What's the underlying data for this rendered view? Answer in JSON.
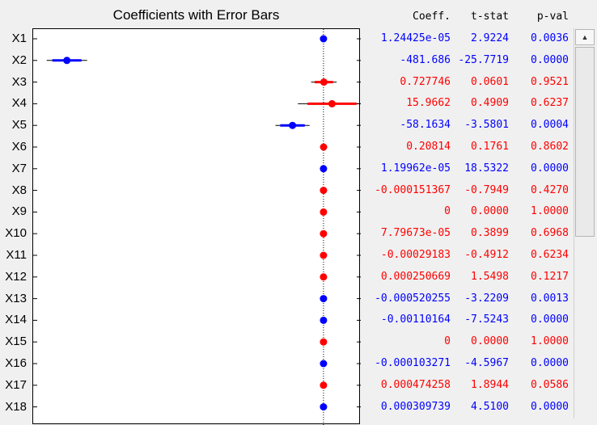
{
  "title": "Coefficients with Error Bars",
  "table": {
    "headers": [
      "Coeff.",
      "t-stat",
      "p-val"
    ]
  },
  "colors": {
    "significant": "#0000ff",
    "not_significant": "#ff0000",
    "axis": "#000000"
  },
  "icons": {
    "scroll_up": "triangle-up-icon"
  },
  "chart_data": {
    "type": "scatter",
    "title": "Coefficients with Error Bars",
    "grid": false,
    "reference_line": 0,
    "rows": [
      {
        "label": "X1",
        "coeff": "1.24425e-05",
        "tstat": "2.9224",
        "pval": "0.0036",
        "value": 0.0,
        "err": 0.0,
        "significant": true
      },
      {
        "label": "X2",
        "coeff": "-481.686",
        "tstat": "-25.7719",
        "pval": "0.0000",
        "value": -481.686,
        "err": 38,
        "significant": true
      },
      {
        "label": "X3",
        "coeff": "0.727746",
        "tstat": "0.0601",
        "pval": "0.9521",
        "value": 0.727746,
        "err": 24,
        "significant": false
      },
      {
        "label": "X4",
        "coeff": "15.9662",
        "tstat": "0.4909",
        "pval": "0.6237",
        "value": 15.9662,
        "err": 64,
        "significant": false
      },
      {
        "label": "X5",
        "coeff": "-58.1634",
        "tstat": "-3.5801",
        "pval": "0.0004",
        "value": -58.1634,
        "err": 32,
        "significant": true
      },
      {
        "label": "X6",
        "coeff": "0.20814",
        "tstat": "0.1761",
        "pval": "0.8602",
        "value": 0.20814,
        "err": 0,
        "significant": false
      },
      {
        "label": "X7",
        "coeff": "1.19962e-05",
        "tstat": "18.5322",
        "pval": "0.0000",
        "value": 0.0,
        "err": 0,
        "significant": true
      },
      {
        "label": "X8",
        "coeff": "-0.000151367",
        "tstat": "-0.7949",
        "pval": "0.4270",
        "value": -0.000151367,
        "err": 0,
        "significant": false
      },
      {
        "label": "X9",
        "coeff": "0",
        "tstat": "0.0000",
        "pval": "1.0000",
        "value": 0,
        "err": 0,
        "significant": false
      },
      {
        "label": "X10",
        "coeff": "7.79673e-05",
        "tstat": "0.3899",
        "pval": "0.6968",
        "value": 7.79673e-05,
        "err": 0,
        "significant": false
      },
      {
        "label": "X11",
        "coeff": "-0.00029183",
        "tstat": "-0.4912",
        "pval": "0.6234",
        "value": -0.00029183,
        "err": 0,
        "significant": false
      },
      {
        "label": "X12",
        "coeff": "0.000250669",
        "tstat": "1.5498",
        "pval": "0.1217",
        "value": 0.000250669,
        "err": 0,
        "significant": false
      },
      {
        "label": "X13",
        "coeff": "-0.000520255",
        "tstat": "-3.2209",
        "pval": "0.0013",
        "value": -0.000520255,
        "err": 0,
        "significant": true
      },
      {
        "label": "X14",
        "coeff": "-0.00110164",
        "tstat": "-7.5243",
        "pval": "0.0000",
        "value": -0.00110164,
        "err": 0,
        "significant": true
      },
      {
        "label": "X15",
        "coeff": "0",
        "tstat": "0.0000",
        "pval": "1.0000",
        "value": 0,
        "err": 0,
        "significant": false
      },
      {
        "label": "X16",
        "coeff": "-0.000103271",
        "tstat": "-4.5967",
        "pval": "0.0000",
        "value": -0.000103271,
        "err": 0,
        "significant": true
      },
      {
        "label": "X17",
        "coeff": "0.000474258",
        "tstat": "1.8944",
        "pval": "0.0586",
        "value": 0.000474258,
        "err": 0,
        "significant": false
      },
      {
        "label": "X18",
        "coeff": "0.000309739",
        "tstat": "4.5100",
        "pval": "0.0000",
        "value": 0.000309739,
        "err": 0,
        "significant": true
      }
    ],
    "xlim": [
      -545,
      70
    ]
  }
}
